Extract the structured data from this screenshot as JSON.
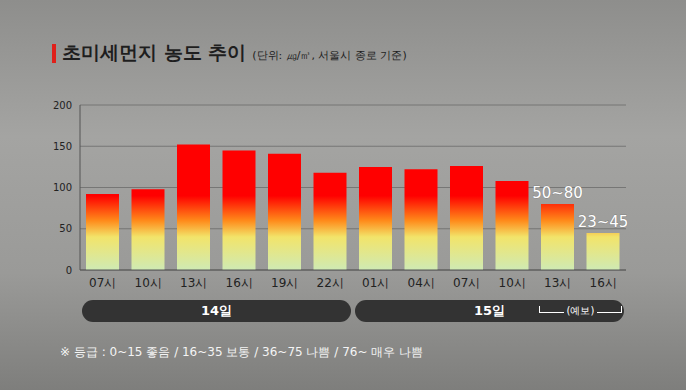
{
  "chart_data": {
    "type": "bar",
    "title": "초미세먼지 농도 추이",
    "subtitle": "(단위: ㎍/㎥, 서울시 종로 기준)",
    "categories": [
      "07시",
      "10시",
      "13시",
      "16시",
      "19시",
      "22시",
      "01시",
      "04시",
      "07시",
      "10시",
      "13시",
      "16시"
    ],
    "values": [
      92,
      98,
      152,
      145,
      141,
      118,
      125,
      122,
      126,
      108,
      80,
      45
    ],
    "value_labels": [
      null,
      null,
      null,
      null,
      null,
      null,
      null,
      null,
      null,
      null,
      "50~80",
      "23~45"
    ],
    "data_labels": true,
    "color": "#ff0000",
    "ylim": [
      0,
      200
    ],
    "yticks": [
      0,
      50,
      100,
      150,
      200
    ],
    "grid": true,
    "groups": [
      {
        "label": "14일",
        "start": 0,
        "end": 5
      },
      {
        "label": "15일",
        "start": 6,
        "end": 11
      }
    ],
    "forecast": {
      "label": "(예보)",
      "start": 10,
      "end": 11
    },
    "note": "※ 등급 : 0~15 좋음 / 16~35 보통 / 36~75 나쁨 / 76~ 매우 나쁨"
  }
}
